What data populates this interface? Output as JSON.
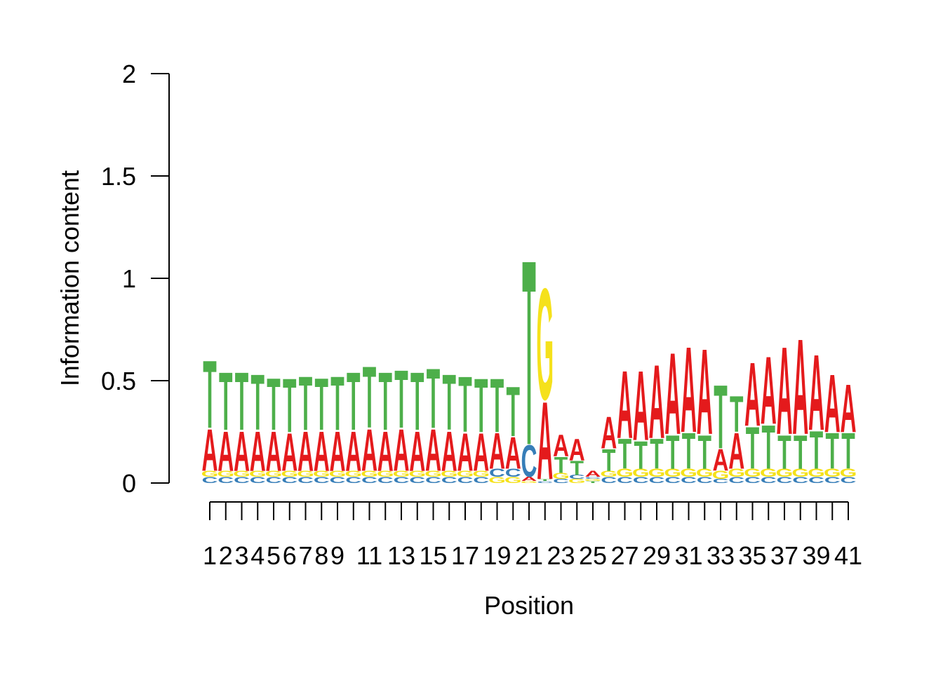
{
  "chart_data": {
    "type": "sequence-logo",
    "xlabel": "Position",
    "ylabel": "Information content",
    "ylim": [
      0,
      2
    ],
    "yticks": [
      "0",
      "0.5",
      "1",
      "1.5",
      "2"
    ],
    "x_tick_labels": [
      "1",
      "2",
      "3",
      "4",
      "5",
      "6",
      "7",
      "8",
      "9",
      "",
      "11",
      "",
      "13",
      "",
      "15",
      "",
      "17",
      "",
      "19",
      "",
      "21",
      "",
      "23",
      "",
      "25",
      "",
      "27",
      "",
      "29",
      "",
      "31",
      "",
      "33",
      "",
      "35",
      "",
      "37",
      "",
      "39",
      "",
      "41"
    ],
    "colors": {
      "A": "#e41a1c",
      "C": "#377eb8",
      "G": "#f5e11b",
      "T": "#4daf4a"
    },
    "positions": [
      {
        "T": 0.34,
        "A": 0.21,
        "C": 0.03,
        "G": 0.03
      },
      {
        "T": 0.29,
        "A": 0.2,
        "C": 0.03,
        "G": 0.03
      },
      {
        "T": 0.29,
        "A": 0.2,
        "C": 0.03,
        "G": 0.03
      },
      {
        "T": 0.28,
        "A": 0.2,
        "C": 0.03,
        "G": 0.03
      },
      {
        "T": 0.26,
        "A": 0.2,
        "C": 0.03,
        "G": 0.03
      },
      {
        "T": 0.27,
        "A": 0.19,
        "C": 0.03,
        "G": 0.03
      },
      {
        "T": 0.27,
        "A": 0.2,
        "C": 0.03,
        "G": 0.03
      },
      {
        "T": 0.26,
        "A": 0.2,
        "C": 0.03,
        "G": 0.03
      },
      {
        "T": 0.27,
        "A": 0.2,
        "C": 0.03,
        "G": 0.03
      },
      {
        "T": 0.29,
        "A": 0.2,
        "C": 0.03,
        "G": 0.03
      },
      {
        "T": 0.31,
        "A": 0.21,
        "C": 0.03,
        "G": 0.03
      },
      {
        "T": 0.29,
        "A": 0.2,
        "C": 0.03,
        "G": 0.03
      },
      {
        "T": 0.29,
        "A": 0.21,
        "C": 0.03,
        "G": 0.03
      },
      {
        "T": 0.29,
        "A": 0.2,
        "C": 0.03,
        "G": 0.03
      },
      {
        "T": 0.3,
        "A": 0.21,
        "C": 0.03,
        "G": 0.03
      },
      {
        "T": 0.28,
        "A": 0.2,
        "C": 0.03,
        "G": 0.03
      },
      {
        "T": 0.28,
        "A": 0.19,
        "C": 0.03,
        "G": 0.03
      },
      {
        "T": 0.27,
        "A": 0.19,
        "C": 0.03,
        "G": 0.03
      },
      {
        "T": 0.27,
        "A": 0.18,
        "C": 0.04,
        "G": 0.03
      },
      {
        "T": 0.25,
        "A": 0.16,
        "C": 0.04,
        "G": 0.03
      },
      {
        "T": 0.93,
        "C": 0.16,
        "A": 0.02,
        "G": 0.01
      },
      {
        "G": 0.56,
        "A": 0.39,
        "C": 0.01,
        "T": 0.01
      },
      {
        "A": 0.11,
        "T": 0.08,
        "G": 0.03,
        "C": 0.02
      },
      {
        "A": 0.11,
        "T": 0.07,
        "G": 0.02,
        "C": 0.02
      },
      {
        "A": 0.03,
        "T": 0.01,
        "G": 0.01,
        "C": 0.01
      },
      {
        "A": 0.16,
        "T": 0.11,
        "C": 0.03,
        "G": 0.03
      },
      {
        "A": 0.34,
        "T": 0.15,
        "G": 0.04,
        "C": 0.03
      },
      {
        "A": 0.35,
        "T": 0.14,
        "G": 0.04,
        "C": 0.03
      },
      {
        "A": 0.37,
        "T": 0.15,
        "G": 0.04,
        "C": 0.03
      },
      {
        "A": 0.41,
        "T": 0.17,
        "G": 0.04,
        "C": 0.03
      },
      {
        "A": 0.43,
        "T": 0.18,
        "G": 0.04,
        "C": 0.03
      },
      {
        "A": 0.43,
        "T": 0.17,
        "G": 0.04,
        "C": 0.03
      },
      {
        "T": 0.32,
        "A": 0.11,
        "G": 0.04,
        "C": 0.02
      },
      {
        "A": 0.18,
        "T": 0.18,
        "G": 0.04,
        "C": 0.03
      },
      {
        "A": 0.32,
        "T": 0.21,
        "G": 0.04,
        "C": 0.03
      },
      {
        "A": 0.34,
        "T": 0.22,
        "G": 0.04,
        "C": 0.03
      },
      {
        "A": 0.44,
        "T": 0.17,
        "G": 0.04,
        "C": 0.03
      },
      {
        "A": 0.48,
        "T": 0.17,
        "G": 0.04,
        "C": 0.03
      },
      {
        "A": 0.38,
        "T": 0.19,
        "G": 0.04,
        "C": 0.03
      },
      {
        "A": 0.29,
        "T": 0.18,
        "G": 0.04,
        "C": 0.03
      },
      {
        "A": 0.24,
        "T": 0.18,
        "G": 0.04,
        "C": 0.03
      }
    ]
  }
}
